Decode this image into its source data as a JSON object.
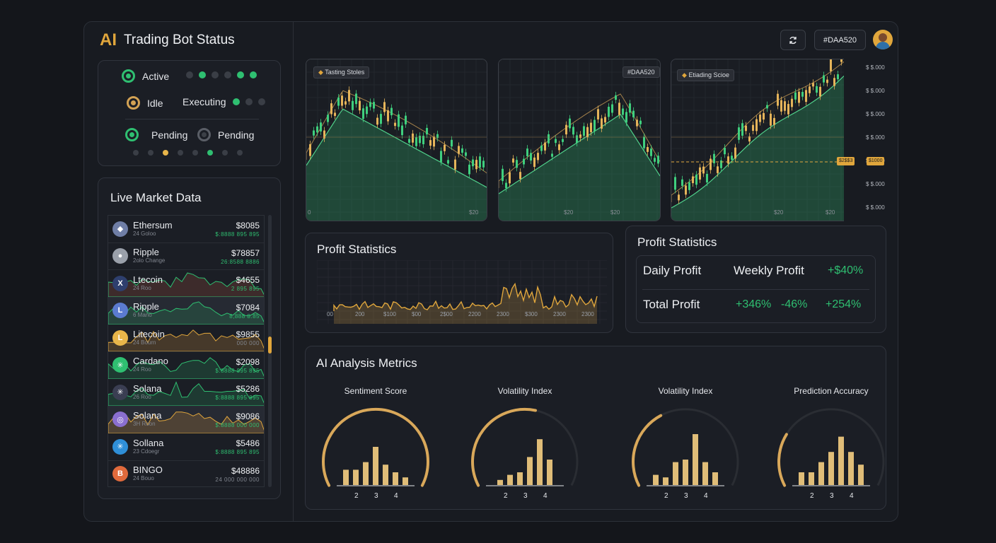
{
  "brand": {
    "ai": "AI",
    "title": "Trading Bot Status"
  },
  "status": {
    "active": "Active",
    "idle": "Idle",
    "executing": "Executing",
    "pending_a": "Pending",
    "pending_b": "Pending"
  },
  "market": {
    "title": "Live Market Data",
    "rows": [
      {
        "name": "Ethersum",
        "sub": "24 Goloo",
        "price": "$8085",
        "change": "$:8888 895 895",
        "color": "#6f7ea6",
        "glyph": "◆"
      },
      {
        "name": "Ripple",
        "sub": "2olo Change",
        "price": "$78857",
        "change": "26:8588 8886",
        "color": "#9aa0aa",
        "glyph": "●"
      },
      {
        "name": "Ltecoin",
        "sub": "24 Roo",
        "price": "$4655",
        "change": "2 895 895",
        "color": "#2e3f6e",
        "glyph": "X"
      },
      {
        "name": "Ripple",
        "sub": "6 Mano",
        "price": "$7084",
        "change": "8,888 8.85",
        "color": "#5b7bd0",
        "glyph": "L"
      },
      {
        "name": "Litecoin",
        "sub": "24 Bourn",
        "price": "$9855",
        "change": "000 000",
        "color": "#e8b54a",
        "glyph": "L"
      },
      {
        "name": "Cardano",
        "sub": "24 Roo",
        "price": "$2098",
        "change": "$:8888 895 895",
        "color": "#2fbf71",
        "glyph": "✳"
      },
      {
        "name": "Solana",
        "sub": "26 Roo",
        "price": "$5286",
        "change": "$:8888 895 895",
        "color": "#3a3e52",
        "glyph": "✳"
      },
      {
        "name": "Solana",
        "sub": "3H Roon",
        "price": "$9086",
        "change": "$:8888 000 000",
        "color": "#8a6fd0",
        "glyph": "◎"
      },
      {
        "name": "Sollana",
        "sub": "23 Cdoegr",
        "price": "$5486",
        "change": "$:8888 895 895",
        "color": "#2f8fd8",
        "glyph": "✳"
      },
      {
        "name": "BINGO",
        "sub": "24 Bouo",
        "price": "$48886",
        "change": "24 000 000 000",
        "color": "#e06a3c",
        "glyph": "B"
      }
    ]
  },
  "topbar": {
    "refresh_icon": "refresh-icon",
    "account": "#DAA520"
  },
  "charts": [
    {
      "label": "Tasting Stoles",
      "ticks": [
        "0",
        "$20"
      ]
    },
    {
      "label": "#DAA520",
      "ticks": [
        "$20",
        "$20"
      ]
    },
    {
      "label": "Etiading Scioe",
      "ticks": [
        "$20",
        "$20"
      ]
    }
  ],
  "yaxis": [
    "$ $.000",
    "$ $.000",
    "$ $.000",
    "$ $.000",
    "$ $.000",
    "$ $.000",
    "$ $.000"
  ],
  "pricetags": [
    "$2$$3",
    "$1000"
  ],
  "profit_chart": {
    "title": "Profit Statistics",
    "ticks": [
      "00",
      "200",
      "$100",
      "$00",
      "2$00",
      "2200",
      "2300",
      "$300",
      "2300",
      "2300"
    ]
  },
  "profit_table": {
    "title": "Profit Statistics",
    "daily": "Daily Profit",
    "weekly": "Weekly Profit",
    "weekly_value": "+$40%",
    "total": "Total Profit",
    "v1": "+346%",
    "v2": "-46%",
    "v3": "+254%"
  },
  "metrics": {
    "title": "AI Analysis Metrics",
    "gauges": [
      {
        "title": "Sentiment Score",
        "labels": [
          "2",
          "3",
          "4"
        ],
        "level": 1.0,
        "bars": [
          0.3,
          0.3,
          0.45,
          0.75,
          0.4,
          0.25,
          0.15
        ]
      },
      {
        "title": "Volatility Index",
        "labels": [
          "2",
          "3",
          "4"
        ],
        "level": 0.55,
        "bars": [
          0.1,
          0.2,
          0.25,
          0.55,
          0.9,
          0.5
        ]
      },
      {
        "title": "Volatility Index",
        "labels": [
          "2",
          "3",
          "4"
        ],
        "level": 0.38,
        "bars": [
          0.2,
          0.15,
          0.45,
          0.5,
          1.0,
          0.45,
          0.25
        ]
      },
      {
        "title": "Prediction Accuracy",
        "labels": [
          "2",
          "3",
          "4"
        ],
        "level": 0.25,
        "bars": [
          0.25,
          0.25,
          0.45,
          0.65,
          0.95,
          0.65,
          0.4
        ]
      }
    ]
  },
  "colors": {
    "gold": "#e0a63c",
    "green": "#2fbf71",
    "panel": "#1b1e25"
  }
}
